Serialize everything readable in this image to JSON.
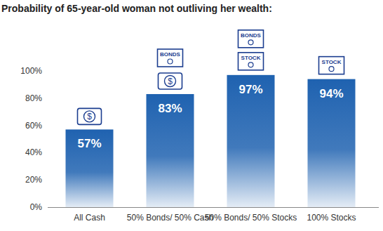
{
  "chart_data": {
    "type": "bar",
    "title": "Probability of 65-year-old woman not outliving her wealth:",
    "categories": [
      "All Cash",
      "50% Bonds/ 50% Cash",
      "50% Bonds/ 50% Stocks",
      "100% Stocks"
    ],
    "values": [
      57,
      83,
      97,
      94
    ],
    "value_labels": [
      "57%",
      "83%",
      "97%",
      "94%"
    ],
    "data_labels": true,
    "annotations": [
      [
        "$"
      ],
      [
        "BONDS",
        "$"
      ],
      [
        "BONDS",
        "STOCK"
      ],
      [
        "STOCK"
      ]
    ],
    "color": "#1f62b0",
    "ylim": [
      0,
      100
    ],
    "yticks": [
      {
        "value": 0,
        "label": "0%"
      },
      {
        "value": 20,
        "label": "20%"
      },
      {
        "value": 40,
        "label": "40%"
      },
      {
        "value": 60,
        "label": "60%"
      },
      {
        "value": 80,
        "label": "80%"
      },
      {
        "value": 100,
        "label": "100%"
      }
    ],
    "grid": false
  }
}
